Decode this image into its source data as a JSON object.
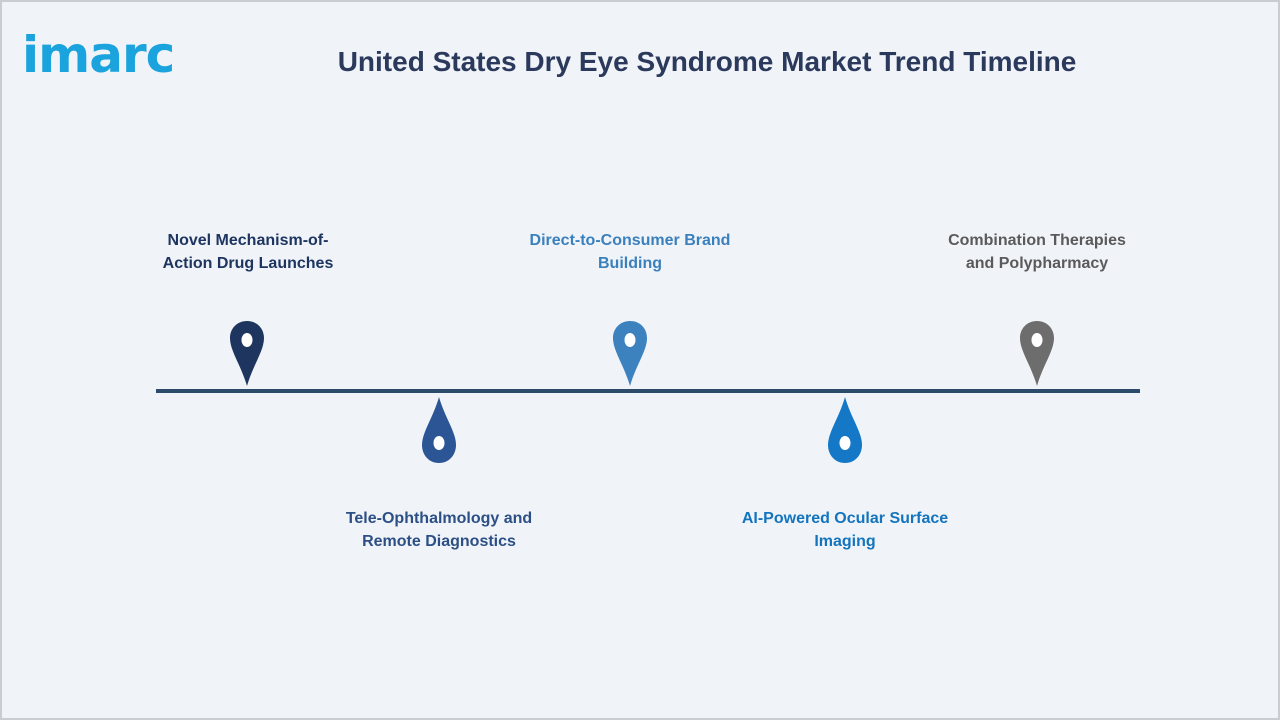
{
  "logo": {
    "text": "imarc",
    "color": "#1aa3dc"
  },
  "title": "United States Dry Eye Syndrome Market Trend Timeline",
  "timeline": {
    "line_color": "#2d4b6a",
    "events": [
      {
        "line1": "Novel Mechanism-of-",
        "line2": "Action Drug Launches",
        "position": "above",
        "color": "#1e3560",
        "text_color": "#1e3560",
        "icon": "map-pin-icon"
      },
      {
        "line1": "Tele-Ophthalmology and",
        "line2": "Remote Diagnostics",
        "position": "below",
        "color": "#2c5596",
        "text_color": "#2c4f86",
        "icon": "droplet-icon"
      },
      {
        "line1": "Direct-to-Consumer Brand",
        "line2": "Building",
        "position": "above",
        "color": "#3b82bf",
        "text_color": "#3a80bd",
        "icon": "map-pin-icon"
      },
      {
        "line1": "AI-Powered Ocular Surface",
        "line2": "Imaging",
        "position": "below",
        "color": "#1478c6",
        "text_color": "#1474bd",
        "icon": "droplet-icon"
      },
      {
        "line1": "Combination Therapies",
        "line2": "and Polypharmacy",
        "position": "above",
        "color": "#6d6d6d",
        "text_color": "#5a5a5a",
        "icon": "map-pin-icon"
      }
    ]
  }
}
